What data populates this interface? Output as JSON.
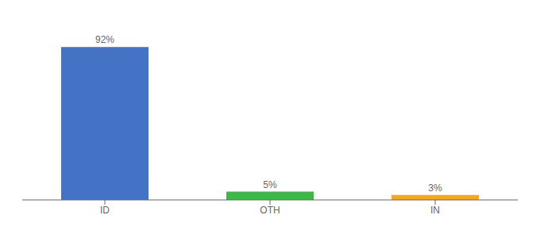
{
  "chart_data": {
    "type": "bar",
    "categories": [
      "ID",
      "OTH",
      "IN"
    ],
    "values": [
      92,
      5,
      3
    ],
    "value_labels": [
      "92%",
      "5%",
      "3%"
    ],
    "colors": [
      "#4472c4",
      "#3cb844",
      "#f5a623"
    ],
    "ylim": [
      0,
      105
    ],
    "data_labels": true,
    "tick_labels": "x",
    "grid": false
  }
}
